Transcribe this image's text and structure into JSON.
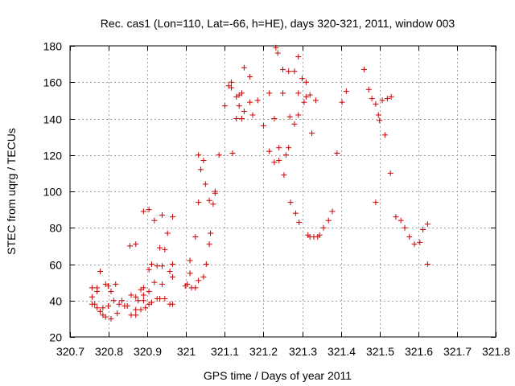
{
  "chart_data": {
    "type": "scatter",
    "title": "Rec. cas1 (Lon=110, Lat=-66, h=HE), days 320-321, 2011, window 003",
    "xlabel": "GPS time / Days of year 2011",
    "ylabel": "STEC from uqrg / TECUs",
    "xlim": [
      320.7,
      321.8
    ],
    "ylim": [
      20,
      180
    ],
    "xticks": [
      320.7,
      320.8,
      320.9,
      321,
      321.1,
      321.2,
      321.3,
      321.4,
      321.5,
      321.6,
      321.7,
      321.8
    ],
    "xtick_labels": [
      "320.7",
      "320.8",
      "320.9",
      "321",
      "321.1",
      "321.2",
      "321.3",
      "321.4",
      "321.5",
      "321.6",
      "321.7",
      "321.8"
    ],
    "yticks": [
      20,
      40,
      60,
      80,
      100,
      120,
      140,
      160,
      180
    ],
    "ytick_labels": [
      "20",
      "40",
      "60",
      "80",
      "100",
      "120",
      "140",
      "160",
      "180"
    ],
    "grid": true,
    "marker": "plus",
    "color": "#cc0000",
    "points": [
      [
        320.757,
        47
      ],
      [
        320.757,
        42
      ],
      [
        320.757,
        38
      ],
      [
        320.764,
        38
      ],
      [
        320.77,
        47
      ],
      [
        320.77,
        45
      ],
      [
        320.77,
        36
      ],
      [
        320.778,
        56
      ],
      [
        320.778,
        34
      ],
      [
        320.785,
        36
      ],
      [
        320.785,
        32
      ],
      [
        320.792,
        49
      ],
      [
        320.792,
        31
      ],
      [
        320.799,
        48
      ],
      [
        320.799,
        37
      ],
      [
        320.806,
        45
      ],
      [
        320.806,
        30
      ],
      [
        320.813,
        40
      ],
      [
        320.818,
        49
      ],
      [
        320.822,
        33
      ],
      [
        320.827,
        38
      ],
      [
        320.834,
        40
      ],
      [
        320.841,
        37
      ],
      [
        320.848,
        37
      ],
      [
        320.855,
        70
      ],
      [
        320.858,
        43
      ],
      [
        320.858,
        32
      ],
      [
        320.87,
        71
      ],
      [
        320.87,
        42
      ],
      [
        320.87,
        35
      ],
      [
        320.87,
        32
      ],
      [
        320.876,
        40
      ],
      [
        320.883,
        46
      ],
      [
        320.883,
        35
      ],
      [
        320.89,
        89
      ],
      [
        320.89,
        47
      ],
      [
        320.89,
        43
      ],
      [
        320.89,
        40
      ],
      [
        320.895,
        36
      ],
      [
        320.904,
        90
      ],
      [
        320.904,
        57
      ],
      [
        320.904,
        45
      ],
      [
        320.904,
        38
      ],
      [
        320.911,
        60
      ],
      [
        320.911,
        39
      ],
      [
        320.918,
        84
      ],
      [
        320.918,
        50
      ],
      [
        320.925,
        59
      ],
      [
        320.925,
        41
      ],
      [
        320.932,
        69
      ],
      [
        320.932,
        41
      ],
      [
        320.938,
        87
      ],
      [
        320.938,
        59
      ],
      [
        320.938,
        49
      ],
      [
        320.945,
        68
      ],
      [
        320.945,
        41
      ],
      [
        320.952,
        77
      ],
      [
        320.958,
        56
      ],
      [
        320.958,
        38
      ],
      [
        320.965,
        86
      ],
      [
        320.965,
        60
      ],
      [
        320.965,
        53
      ],
      [
        320.965,
        38
      ],
      [
        320.998,
        48
      ],
      [
        321.003,
        49
      ],
      [
        321.01,
        62
      ],
      [
        321.01,
        55
      ],
      [
        321.014,
        47
      ],
      [
        321.024,
        75
      ],
      [
        321.024,
        47
      ],
      [
        321.032,
        94
      ],
      [
        321.032,
        120
      ],
      [
        321.032,
        51
      ],
      [
        321.038,
        112
      ],
      [
        321.045,
        117
      ],
      [
        321.045,
        53
      ],
      [
        321.05,
        104
      ],
      [
        321.052,
        60
      ],
      [
        321.06,
        71
      ],
      [
        321.06,
        95
      ],
      [
        321.063,
        77
      ],
      [
        321.07,
        93
      ],
      [
        321.075,
        100
      ],
      [
        321.075,
        99
      ],
      [
        321.085,
        120
      ],
      [
        321.1,
        147
      ],
      [
        321.11,
        158
      ],
      [
        321.117,
        160
      ],
      [
        321.117,
        157
      ],
      [
        321.12,
        121
      ],
      [
        321.13,
        152
      ],
      [
        321.13,
        140
      ],
      [
        321.137,
        153
      ],
      [
        321.137,
        147
      ],
      [
        321.144,
        154
      ],
      [
        321.144,
        140
      ],
      [
        321.15,
        168
      ],
      [
        321.15,
        144
      ],
      [
        321.165,
        163
      ],
      [
        321.165,
        149
      ],
      [
        321.172,
        142
      ],
      [
        321.185,
        150
      ],
      [
        321.2,
        136
      ],
      [
        321.215,
        154
      ],
      [
        321.215,
        122
      ],
      [
        321.228,
        140
      ],
      [
        321.228,
        116
      ],
      [
        321.232,
        179
      ],
      [
        321.237,
        176
      ],
      [
        321.24,
        124
      ],
      [
        321.24,
        117
      ],
      [
        321.25,
        167
      ],
      [
        321.25,
        154
      ],
      [
        321.253,
        109
      ],
      [
        321.258,
        120
      ],
      [
        321.265,
        166
      ],
      [
        321.265,
        124
      ],
      [
        321.268,
        141
      ],
      [
        321.27,
        94
      ],
      [
        321.28,
        166
      ],
      [
        321.28,
        137
      ],
      [
        321.283,
        88
      ],
      [
        321.29,
        174
      ],
      [
        321.29,
        154
      ],
      [
        321.29,
        142
      ],
      [
        321.292,
        83
      ],
      [
        321.3,
        162
      ],
      [
        321.305,
        149
      ],
      [
        321.31,
        160
      ],
      [
        321.31,
        152
      ],
      [
        321.315,
        76
      ],
      [
        321.32,
        153
      ],
      [
        321.32,
        75
      ],
      [
        321.325,
        132
      ],
      [
        321.33,
        75
      ],
      [
        321.335,
        150
      ],
      [
        321.34,
        75
      ],
      [
        321.345,
        76
      ],
      [
        321.355,
        80
      ],
      [
        321.368,
        84
      ],
      [
        321.378,
        89
      ],
      [
        321.39,
        121
      ],
      [
        321.403,
        149
      ],
      [
        321.414,
        155
      ],
      [
        321.46,
        167
      ],
      [
        321.472,
        156
      ],
      [
        321.48,
        151
      ],
      [
        321.49,
        148
      ],
      [
        321.49,
        94
      ],
      [
        321.497,
        142
      ],
      [
        321.5,
        139
      ],
      [
        321.507,
        150
      ],
      [
        321.514,
        131
      ],
      [
        321.52,
        151
      ],
      [
        321.528,
        110
      ],
      [
        321.53,
        152
      ],
      [
        321.542,
        86
      ],
      [
        321.555,
        84
      ],
      [
        321.565,
        80
      ],
      [
        321.577,
        75
      ],
      [
        321.59,
        71
      ],
      [
        321.604,
        72
      ],
      [
        321.612,
        79
      ],
      [
        321.624,
        82
      ],
      [
        321.624,
        60
      ]
    ]
  }
}
